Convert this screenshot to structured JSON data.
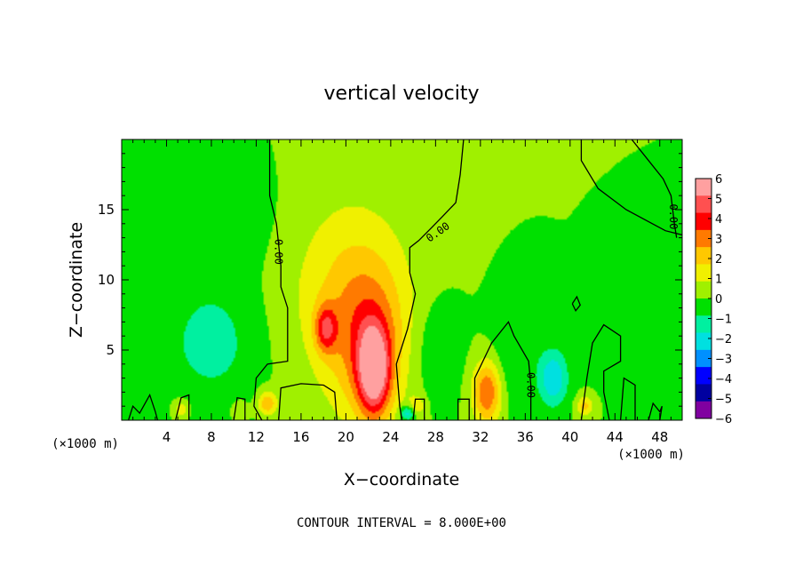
{
  "chart_data": {
    "type": "heatmap",
    "title": "vertical velocity",
    "xlabel": "X−coordinate",
    "ylabel": "Z−coordinate",
    "x_unit_left": "(×1000 m)",
    "x_unit_right": "(×1000 m)",
    "footer": "CONTOUR INTERVAL = 8.000E+00",
    "xlim": [
      0,
      50
    ],
    "ylim": [
      0,
      20
    ],
    "x_ticks": [
      4,
      8,
      12,
      16,
      20,
      24,
      28,
      32,
      36,
      40,
      44,
      48
    ],
    "y_ticks": [
      5,
      10,
      15
    ],
    "contour_label": "0.00",
    "colorbar": {
      "min": -6,
      "max": 6,
      "labels": [
        "6",
        "5",
        "4",
        "3",
        "2",
        "1",
        "0",
        "−1",
        "−2",
        "−3",
        "−4",
        "−5",
        "−6"
      ],
      "colors": [
        "#ffa0a0",
        "#ff5050",
        "#ff0000",
        "#ff7a00",
        "#ffc800",
        "#f0f000",
        "#a0f000",
        "#00e000",
        "#00f0a0",
        "#00e0e0",
        "#0090ff",
        "#0000ff",
        "#0000a0",
        "#8000a0"
      ]
    },
    "background_value": 0,
    "features": [
      {
        "x": 22.5,
        "z": 3.5,
        "value": 5.0,
        "sx": 1.0,
        "sz": 2.2
      },
      {
        "x": 22.0,
        "z": 5.5,
        "value": 2.5,
        "sx": 2.4,
        "sz": 4.0
      },
      {
        "x": 18.2,
        "z": 6.5,
        "value": 3.0,
        "sx": 0.7,
        "sz": 1.2
      },
      {
        "x": 20.0,
        "z": 9.5,
        "value": 1.5,
        "sx": 4.0,
        "sz": 5.0
      },
      {
        "x": 32.6,
        "z": 2.0,
        "value": 3.5,
        "sx": 0.9,
        "sz": 1.6
      },
      {
        "x": 13.0,
        "z": 1.2,
        "value": 2.5,
        "sx": 0.6,
        "sz": 0.6
      },
      {
        "x": 41.3,
        "z": 1.0,
        "value": 2.0,
        "sx": 0.5,
        "sz": 0.5
      },
      {
        "x": 5.3,
        "z": 0.8,
        "value": 1.5,
        "sx": 0.5,
        "sz": 0.5
      },
      {
        "x": 10.5,
        "z": 0.7,
        "value": 1.0,
        "sx": 0.5,
        "sz": 0.5
      },
      {
        "x": 26.3,
        "z": 1.0,
        "value": 1.5,
        "sx": 0.5,
        "sz": 0.5
      },
      {
        "x": 38.5,
        "z": 3.0,
        "value": -2.5,
        "sx": 0.9,
        "sz": 1.4
      },
      {
        "x": 8.0,
        "z": 5.5,
        "value": -1.2,
        "sx": 3.0,
        "sz": 3.0
      },
      {
        "x": 25.5,
        "z": 0.5,
        "value": -2.5,
        "sx": 0.5,
        "sz": 0.4
      },
      {
        "x": 28.0,
        "z": 5.0,
        "value": -0.8,
        "sx": 1.5,
        "sz": 2.5
      },
      {
        "x": 35.0,
        "z": 4.5,
        "value": -0.8,
        "sx": 1.5,
        "sz": 2.5
      },
      {
        "x": 45.0,
        "z": 6.0,
        "value": -0.6,
        "sx": 2.0,
        "sz": 2.0
      },
      {
        "x": 8.0,
        "z": 14.0,
        "value": -0.5,
        "sx": 5.0,
        "sz": 3.0
      }
    ],
    "contours": [
      {
        "level": "0.00",
        "points": [
          [
            13.2,
            20
          ],
          [
            13.2,
            16
          ],
          [
            13.8,
            14
          ],
          [
            14.0,
            12.5
          ],
          [
            14.2,
            11
          ],
          [
            14.2,
            9.5
          ],
          [
            14.8,
            8.0
          ],
          [
            14.8,
            6.0
          ],
          [
            14.8,
            4.2
          ],
          [
            13.0,
            4.0
          ],
          [
            12.0,
            3.0
          ],
          [
            11.8,
            1.0
          ],
          [
            12.5,
            0
          ]
        ],
        "label_at": [
          14.0,
          12.0
        ]
      },
      {
        "level": "0.00",
        "points": [
          [
            30.5,
            20
          ],
          [
            30.2,
            17.5
          ],
          [
            29.8,
            15.5
          ],
          [
            28.6,
            14.5
          ],
          [
            27.5,
            13.6
          ],
          [
            26.5,
            12.8
          ],
          [
            25.7,
            12.3
          ],
          [
            25.7,
            10.5
          ],
          [
            26.2,
            9.0
          ],
          [
            25.5,
            6.5
          ],
          [
            24.5,
            4.0
          ],
          [
            24.8,
            1.0
          ],
          [
            25.0,
            0
          ]
        ],
        "label_at": [
          28.2,
          13.4
        ]
      },
      {
        "level": "0.00",
        "points": [
          [
            41.0,
            20
          ],
          [
            41.0,
            18.5
          ],
          [
            42.5,
            16.5
          ],
          [
            45.0,
            15.0
          ],
          [
            48.5,
            13.5
          ],
          [
            50,
            13.2
          ]
        ]
      },
      {
        "level": "0.00",
        "points": [
          [
            45.5,
            20
          ],
          [
            47.0,
            18.5
          ],
          [
            48.3,
            17.2
          ],
          [
            49.0,
            16.0
          ],
          [
            49.3,
            14.0
          ],
          [
            49.5,
            13.0
          ]
        ],
        "label_at": [
          49.2,
          14.5
        ]
      },
      {
        "level": "0.00",
        "points": [
          [
            31.5,
            0
          ],
          [
            31.5,
            3.0
          ],
          [
            33.0,
            5.5
          ],
          [
            34.5,
            7.0
          ],
          [
            35.0,
            6.0
          ],
          [
            36.3,
            4.2
          ],
          [
            36.5,
            2.5
          ],
          [
            36.5,
            0
          ]
        ],
        "label_at": [
          36.5,
          2.5
        ]
      },
      {
        "level": "0.00",
        "points": [
          [
            41.0,
            0
          ],
          [
            41.5,
            3.0
          ],
          [
            42.0,
            5.5
          ],
          [
            43.0,
            6.8
          ],
          [
            44.5,
            6.0
          ],
          [
            44.5,
            4.2
          ],
          [
            43.0,
            3.5
          ],
          [
            43.0,
            2.0
          ],
          [
            43.5,
            0
          ]
        ]
      },
      {
        "level": "0.00",
        "points": [
          [
            14.0,
            0
          ],
          [
            14.2,
            2.3
          ],
          [
            16.0,
            2.6
          ],
          [
            18.0,
            2.5
          ],
          [
            19.0,
            2.0
          ],
          [
            19.2,
            0
          ]
        ]
      },
      {
        "level": "0.00",
        "points": [
          [
            0.6,
            0
          ],
          [
            1.0,
            1.0
          ],
          [
            1.6,
            0.5
          ],
          [
            2.5,
            1.8
          ],
          [
            3.0,
            0.6
          ],
          [
            3.2,
            0
          ]
        ]
      },
      {
        "level": "0.00",
        "points": [
          [
            4.8,
            0
          ],
          [
            5.3,
            1.6
          ],
          [
            6.0,
            1.8
          ],
          [
            6.0,
            0
          ]
        ]
      },
      {
        "level": "0.00",
        "points": [
          [
            10.0,
            0
          ],
          [
            10.3,
            1.6
          ],
          [
            11.0,
            1.5
          ],
          [
            11.0,
            0
          ]
        ]
      },
      {
        "level": "0.00",
        "points": [
          [
            26.0,
            0
          ],
          [
            26.2,
            1.5
          ],
          [
            27.0,
            1.5
          ],
          [
            27.0,
            0
          ]
        ]
      },
      {
        "level": "0.00",
        "points": [
          [
            30.0,
            0
          ],
          [
            30.0,
            1.5
          ],
          [
            31.0,
            1.5
          ],
          [
            31.0,
            0
          ]
        ]
      },
      {
        "level": "0.00",
        "points": [
          [
            44.5,
            0
          ],
          [
            44.8,
            3.0
          ],
          [
            45.8,
            2.5
          ],
          [
            45.8,
            0
          ]
        ]
      },
      {
        "level": "0.00",
        "points": [
          [
            47.0,
            0
          ],
          [
            47.4,
            1.2
          ],
          [
            48.0,
            0.6
          ],
          [
            48.2,
            1.0
          ],
          [
            48.0,
            0
          ]
        ]
      },
      {
        "level": "0.00",
        "points": [
          [
            40.2,
            8.3
          ],
          [
            40.6,
            8.8
          ],
          [
            40.9,
            8.2
          ],
          [
            40.5,
            7.8
          ],
          [
            40.2,
            8.3
          ]
        ]
      }
    ]
  }
}
